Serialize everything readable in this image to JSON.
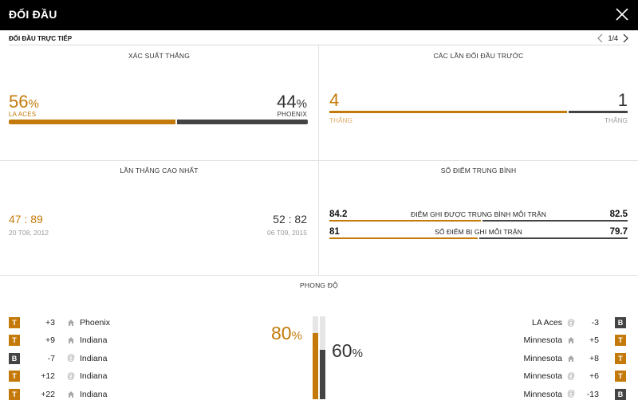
{
  "header": {
    "title": "ĐỐI ĐẦU"
  },
  "subheader": {
    "label": "ĐỐI ĐẦU TRỰC TIẾP",
    "page": "1/4"
  },
  "win_probability": {
    "title": "XÁC SUẤT THẮNG",
    "home": {
      "value": "56",
      "unit": "%",
      "team": "LA ACES",
      "fraction": 0.56
    },
    "away": {
      "value": "44",
      "unit": "%",
      "team": "PHOENIX",
      "fraction": 0.44
    }
  },
  "previous_meetings": {
    "title": "CÁC LẦN ĐỐI ĐẦU TRƯỚC",
    "home": {
      "value": "4",
      "label": "THẮNG"
    },
    "away": {
      "value": "1",
      "label": "THẮNG"
    },
    "home_share": 0.8
  },
  "biggest_win": {
    "title": "LẦN THẮNG CAO NHẤT",
    "home": {
      "score_a": "47",
      "sep": ":",
      "score_b": "89",
      "date": "20 T08, 2012"
    },
    "away": {
      "score_a": "52",
      "sep": ":",
      "score_b": "82",
      "date": "06 T09, 2015"
    }
  },
  "average_points": {
    "title": "SỐ ĐIỂM TRUNG BÌNH",
    "rows": [
      {
        "label": "ĐIỂM GHI ĐƯỢC TRUNG BÌNH MỖI TRẬN",
        "home": "84.2",
        "away": "82.5"
      },
      {
        "label": "SỐ ĐIỂM BỊ GHI MỖI TRẬN",
        "home": "81",
        "away": "79.7"
      }
    ]
  },
  "form": {
    "title": "PHONG ĐỘ",
    "home_pct": {
      "value": "80",
      "unit": "%",
      "fraction": 0.8
    },
    "away_pct": {
      "value": "60",
      "unit": "%",
      "fraction": 0.6
    },
    "home_games": [
      {
        "result": "T",
        "diff": "+3",
        "venue": "home",
        "opponent": "Phoenix"
      },
      {
        "result": "T",
        "diff": "+9",
        "venue": "home",
        "opponent": "Indiana"
      },
      {
        "result": "B",
        "diff": "-7",
        "venue": "away",
        "opponent": "Indiana"
      },
      {
        "result": "T",
        "diff": "+12",
        "venue": "away",
        "opponent": "Indiana"
      },
      {
        "result": "T",
        "diff": "+22",
        "venue": "home",
        "opponent": "Indiana"
      }
    ],
    "away_games": [
      {
        "result": "B",
        "diff": "-3",
        "venue": "away",
        "opponent": "LA Aces"
      },
      {
        "result": "T",
        "diff": "+5",
        "venue": "home",
        "opponent": "Minnesota"
      },
      {
        "result": "T",
        "diff": "+8",
        "venue": "home",
        "opponent": "Minnesota"
      },
      {
        "result": "T",
        "diff": "+6",
        "venue": "away",
        "opponent": "Minnesota"
      },
      {
        "result": "B",
        "diff": "-13",
        "venue": "away",
        "opponent": "Minnesota"
      }
    ]
  },
  "colors": {
    "home": "#c47a0a",
    "away": "#444444",
    "header_bg": "#000000"
  }
}
